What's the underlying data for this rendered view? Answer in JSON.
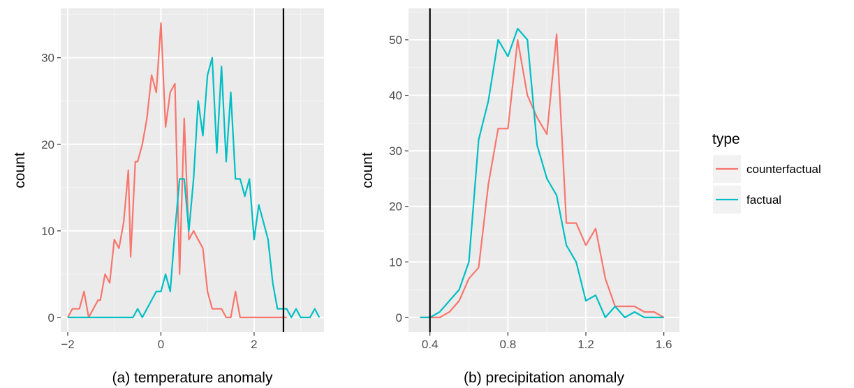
{
  "chart_data": [
    {
      "type": "line",
      "xlabel": "(a) temperature anomaly",
      "ylabel": "count",
      "xlim": [
        -2.15,
        3.5
      ],
      "ylim": [
        -1.7,
        35.7
      ],
      "x_ticks": [
        -2,
        0,
        2
      ],
      "x_tick_labels": [
        "−2",
        "0",
        "2"
      ],
      "y_ticks": [
        0,
        10,
        20,
        30
      ],
      "y_tick_labels": [
        "0",
        "10",
        "20",
        "30"
      ],
      "vline": 2.63,
      "series": [
        {
          "name": "counterfactual",
          "x": [
            -2.0,
            -1.9,
            -1.75,
            -1.65,
            -1.55,
            -1.35,
            -1.3,
            -1.2,
            -1.1,
            -1.0,
            -0.9,
            -0.8,
            -0.7,
            -0.65,
            -0.55,
            -0.5,
            -0.4,
            -0.3,
            -0.2,
            -0.1,
            0.0,
            0.1,
            0.2,
            0.3,
            0.4,
            0.5,
            0.6,
            0.7,
            0.8,
            0.9,
            1.0,
            1.1,
            1.2,
            1.3,
            1.4,
            1.5,
            1.6,
            1.7,
            1.8,
            1.9,
            2.0,
            2.1,
            2.2,
            2.3,
            2.4,
            2.5,
            2.6,
            2.7
          ],
          "values": [
            0,
            1,
            1,
            3,
            0,
            2,
            2,
            5,
            4,
            9,
            8,
            11,
            17,
            7,
            18,
            18,
            20,
            23,
            28,
            26,
            34,
            22,
            26,
            27,
            5,
            23,
            9,
            10,
            9,
            8,
            3,
            1,
            1,
            1,
            0,
            0,
            3,
            0,
            0,
            0,
            0,
            0,
            0,
            0,
            0,
            0,
            0,
            0
          ]
        },
        {
          "name": "factual",
          "x": [
            -2.0,
            -0.6,
            -0.5,
            -0.4,
            -0.3,
            -0.2,
            -0.1,
            0.0,
            0.1,
            0.2,
            0.3,
            0.4,
            0.5,
            0.6,
            0.7,
            0.8,
            0.9,
            1.0,
            1.1,
            1.2,
            1.3,
            1.4,
            1.5,
            1.6,
            1.7,
            1.8,
            1.9,
            2.0,
            2.1,
            2.2,
            2.3,
            2.4,
            2.5,
            2.6,
            2.7,
            2.8,
            2.9,
            3.0,
            3.1,
            3.2,
            3.3,
            3.4
          ],
          "values": [
            0,
            0,
            1,
            0,
            1,
            2,
            3,
            3,
            5,
            3,
            10,
            16,
            16,
            10,
            16,
            25,
            21,
            28,
            30,
            19,
            29,
            18,
            26,
            16,
            16,
            14,
            16,
            9,
            13,
            11,
            9,
            4,
            1,
            1,
            1,
            0,
            1,
            0,
            0,
            0,
            1,
            0
          ]
        }
      ]
    },
    {
      "type": "line",
      "xlabel": "(b) precipitation anomaly",
      "ylabel": "count",
      "xlim": [
        0.29,
        1.68
      ],
      "ylim": [
        -2.65,
        55.65
      ],
      "x_ticks": [
        0.4,
        0.8,
        1.2,
        1.6
      ],
      "x_tick_labels": [
        "0.4",
        "0.8",
        "1.2",
        "1.6"
      ],
      "y_ticks": [
        0,
        10,
        20,
        30,
        40,
        50
      ],
      "y_tick_labels": [
        "0",
        "10",
        "20",
        "30",
        "40",
        "50"
      ],
      "vline": 0.4,
      "series": [
        {
          "name": "counterfactual",
          "x": [
            0.35,
            0.4,
            0.45,
            0.5,
            0.55,
            0.6,
            0.65,
            0.7,
            0.75,
            0.8,
            0.85,
            0.9,
            0.95,
            1.0,
            1.05,
            1.1,
            1.15,
            1.2,
            1.25,
            1.3,
            1.35,
            1.4,
            1.45,
            1.5,
            1.55,
            1.6
          ],
          "values": [
            0,
            0,
            0,
            1,
            3,
            7,
            9,
            24,
            34,
            34,
            50,
            40,
            36,
            33,
            51,
            17,
            17,
            13,
            16,
            7,
            2,
            2,
            2,
            1,
            1,
            0
          ]
        },
        {
          "name": "factual",
          "x": [
            0.35,
            0.4,
            0.45,
            0.5,
            0.55,
            0.6,
            0.65,
            0.7,
            0.75,
            0.8,
            0.85,
            0.9,
            0.95,
            1.0,
            1.05,
            1.1,
            1.15,
            1.2,
            1.25,
            1.3,
            1.35,
            1.4,
            1.45,
            1.5,
            1.55,
            1.6
          ],
          "values": [
            0,
            0,
            1,
            3,
            5,
            10,
            32,
            39,
            50,
            47,
            52,
            50,
            31,
            25,
            22,
            13,
            10,
            3,
            4,
            0,
            2,
            0,
            1,
            0,
            0,
            0
          ]
        }
      ]
    }
  ],
  "legend": {
    "title": "type",
    "placement": "right",
    "items": [
      {
        "label": "counterfactual",
        "color": "#F8766D"
      },
      {
        "label": "factual",
        "color": "#00BFC4"
      }
    ]
  },
  "colors": {
    "panel_background": "#EBEBEB",
    "grid_major": "#FFFFFF",
    "grid_minor": "#F5F5F5",
    "vline": "#000000"
  }
}
